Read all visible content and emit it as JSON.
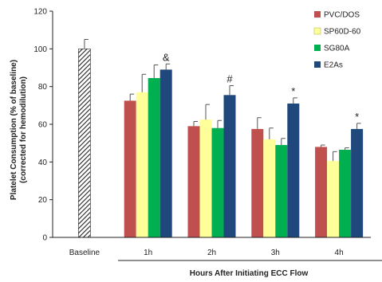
{
  "chart_data": {
    "type": "bar",
    "ylabel_line1": "Platelet Consumption (% of baseline)",
    "ylabel_line2": "(corrected for hemodilution)",
    "xlabel": "Hours After Initiating ECC Flow",
    "ylim": [
      0,
      120
    ],
    "yticks": [
      "0",
      "20",
      "40",
      "60",
      "80",
      "100",
      "120"
    ],
    "legend_position": "top-right",
    "baseline": {
      "label": "Baseline",
      "value": 100,
      "error": 5,
      "pattern": "diagonal-hatch"
    },
    "categories": [
      "1h",
      "2h",
      "3h",
      "4h"
    ],
    "series": [
      {
        "name": "PVC/DOS",
        "color": "#c0504d",
        "values": [
          72.5,
          59,
          57.5,
          48
        ],
        "errors": [
          3.5,
          2.5,
          6,
          1
        ]
      },
      {
        "name": "SP60D-60",
        "color": "#ffff99",
        "values": [
          77,
          62.5,
          52,
          40.5
        ],
        "errors": [
          9.5,
          8,
          6,
          5
        ]
      },
      {
        "name": "SG80A",
        "color": "#00b050",
        "values": [
          84.5,
          58,
          49,
          46.5
        ],
        "errors": [
          7,
          4,
          3.5,
          1
        ]
      },
      {
        "name": "E2As",
        "color": "#1f497d",
        "values": [
          89,
          75.5,
          71,
          57.5
        ],
        "errors": [
          3,
          5,
          3,
          3
        ]
      }
    ],
    "annotations": [
      {
        "text": "&",
        "category": "1h"
      },
      {
        "text": "#",
        "category": "2h"
      },
      {
        "text": "*",
        "category": "3h"
      },
      {
        "text": "*",
        "category": "4h"
      }
    ]
  }
}
